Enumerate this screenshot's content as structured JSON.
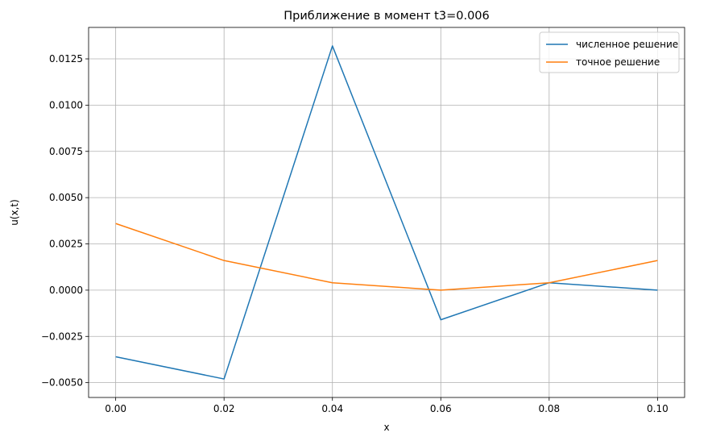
{
  "chart_data": {
    "type": "line",
    "title": "Приближение в момент t3=0.006",
    "xlabel": "x",
    "ylabel": "u(x,t)",
    "x": [
      0.0,
      0.02,
      0.04,
      0.06,
      0.08,
      0.1
    ],
    "xlim": [
      -0.005,
      0.105
    ],
    "ylim": [
      -0.0058,
      0.0142
    ],
    "xticks": [
      0.0,
      0.02,
      0.04,
      0.06,
      0.08,
      0.1
    ],
    "xtick_labels": [
      "0.00",
      "0.02",
      "0.04",
      "0.06",
      "0.08",
      "0.10"
    ],
    "yticks": [
      -0.005,
      -0.0025,
      0.0,
      0.0025,
      0.005,
      0.0075,
      0.01,
      0.0125
    ],
    "ytick_labels": [
      "−0.0050",
      "−0.0025",
      "0.0000",
      "0.0025",
      "0.0050",
      "0.0075",
      "0.0100",
      "0.0125"
    ],
    "grid": true,
    "legend_position": "top-right",
    "series": [
      {
        "name": "численное решение",
        "color": "#1f77b4",
        "values": [
          -0.0036,
          -0.0048,
          0.0132,
          -0.0016,
          0.0004,
          0.0
        ]
      },
      {
        "name": "точное решение",
        "color": "#ff7f0e",
        "values": [
          0.0036,
          0.0016,
          0.0004,
          0.0,
          0.0004,
          0.0016
        ]
      }
    ]
  }
}
